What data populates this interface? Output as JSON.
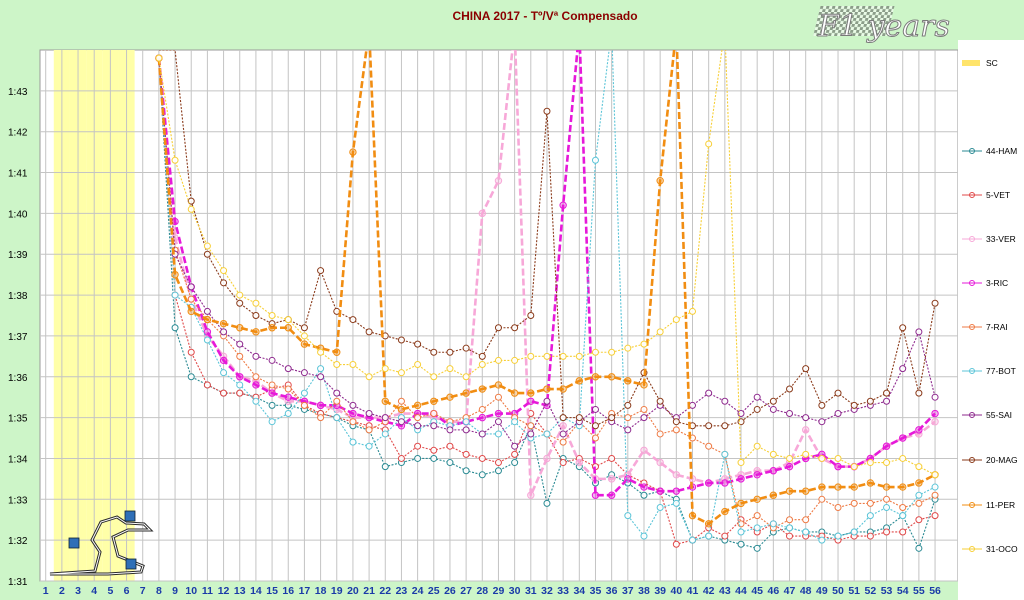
{
  "chart_data": {
    "type": "line",
    "title": "CHINA 2017 - Tº/Vª Compensado",
    "logo_text": "F1 years",
    "x_ticks": [
      1,
      2,
      3,
      4,
      5,
      6,
      7,
      8,
      9,
      10,
      11,
      12,
      13,
      14,
      15,
      16,
      17,
      18,
      19,
      20,
      21,
      22,
      23,
      24,
      25,
      26,
      27,
      28,
      29,
      30,
      31,
      32,
      33,
      34,
      35,
      36,
      37,
      38,
      39,
      40,
      41,
      42,
      43,
      44,
      45,
      46,
      47,
      48,
      49,
      50,
      51,
      52,
      53,
      54,
      55,
      56
    ],
    "y_ticks": [
      "1:31",
      "1:32",
      "1:33",
      "1:34",
      "1:35",
      "1:36",
      "1:37",
      "1:38",
      "1:39",
      "1:40",
      "1:41",
      "1:42",
      "1:43"
    ],
    "y_range_seconds": [
      91,
      104
    ],
    "x_range": [
      1,
      56
    ],
    "safety_car_laps": [
      2,
      3,
      4,
      5,
      6
    ],
    "legend_position": "right",
    "series": [
      {
        "name": "SC",
        "color": "#ffe46b",
        "style": "band"
      },
      {
        "name": "44-HAM",
        "color": "#2a8a93",
        "style": "thin",
        "x": [
          8,
          9,
          10,
          11,
          12,
          13,
          14,
          15,
          16,
          17,
          18,
          19,
          20,
          21,
          22,
          23,
          24,
          25,
          26,
          27,
          28,
          29,
          30,
          31,
          32,
          33,
          34,
          35,
          36,
          37,
          38,
          39,
          40,
          41,
          42,
          43,
          44,
          45,
          46,
          47,
          48,
          49,
          50,
          51,
          52,
          53,
          54,
          55,
          56
        ],
        "y": [
          103.8,
          97.2,
          96.0,
          95.8,
          95.6,
          95.6,
          95.5,
          95.3,
          95.3,
          95.2,
          95.1,
          95.0,
          94.8,
          94.7,
          93.8,
          93.9,
          94.0,
          94.0,
          93.9,
          93.7,
          93.6,
          93.7,
          93.9,
          94.8,
          92.9,
          94.0,
          93.8,
          93.4,
          93.6,
          93.4,
          93.1,
          93.2,
          93.0,
          92.0,
          92.1,
          92.0,
          91.9,
          91.8,
          92.2,
          92.3,
          92.2,
          92.2,
          92.1,
          92.2,
          92.2,
          92.3,
          92.6,
          91.8,
          93.0
        ]
      },
      {
        "name": "5-VET",
        "color": "#e04848",
        "style": "thin",
        "x": [
          8,
          9,
          10,
          11,
          12,
          13,
          14,
          15,
          16,
          17,
          18,
          19,
          20,
          21,
          22,
          23,
          24,
          25,
          26,
          27,
          28,
          29,
          30,
          31,
          32,
          33,
          34,
          35,
          36,
          37,
          38,
          39,
          40,
          41,
          42,
          43,
          44,
          45,
          46,
          47,
          48,
          49,
          50,
          51,
          52,
          53,
          54,
          55,
          56
        ],
        "y": [
          103.8,
          98.0,
          96.6,
          95.8,
          95.6,
          95.6,
          95.5,
          95.7,
          95.8,
          95.3,
          95.1,
          95.0,
          94.9,
          94.8,
          94.7,
          94.0,
          94.3,
          94.2,
          94.3,
          94.1,
          94.0,
          93.9,
          94.1,
          95.1,
          94.6,
          93.9,
          94.0,
          93.8,
          94.0,
          93.6,
          93.4,
          93.2,
          91.9,
          92.0,
          92.3,
          92.1,
          92.5,
          92.2,
          92.4,
          92.1,
          92.1,
          92.1,
          92.0,
          92.1,
          92.1,
          92.2,
          92.2,
          92.5,
          92.6
        ]
      },
      {
        "name": "33-VER",
        "color": "#f7a8d8",
        "style": "thick",
        "x": [
          8,
          9,
          10,
          11,
          12,
          13,
          14,
          15,
          16,
          17,
          18,
          19,
          20,
          21,
          22,
          23,
          24,
          25,
          26,
          27,
          28,
          29,
          30,
          31,
          32,
          33,
          34,
          35,
          36,
          37,
          38,
          39,
          40,
          41,
          42,
          43,
          44,
          45,
          46,
          47,
          48,
          49,
          50,
          51,
          52,
          53,
          54,
          55,
          56
        ],
        "y": [
          103.8,
          99.4,
          97.9,
          97.0,
          96.5,
          96.0,
          95.9,
          95.6,
          95.4,
          95.4,
          95.3,
          95.2,
          95.0,
          95.0,
          95.0,
          95.1,
          95.1,
          95.0,
          94.9,
          94.9,
          100.0,
          100.8,
          104.5,
          93.1,
          94.0,
          94.8,
          93.9,
          93.5,
          93.5,
          93.6,
          94.2,
          93.9,
          93.6,
          93.5,
          93.4,
          93.5,
          93.6,
          93.7,
          93.7,
          93.9,
          94.7,
          94.0,
          93.8,
          93.8,
          94.0,
          94.3,
          94.5,
          94.6,
          94.9
        ]
      },
      {
        "name": "3-RIC",
        "color": "#e619d9",
        "style": "thick",
        "x": [
          8,
          9,
          10,
          11,
          12,
          13,
          14,
          15,
          16,
          17,
          18,
          19,
          20,
          21,
          22,
          23,
          24,
          25,
          26,
          27,
          28,
          29,
          30,
          31,
          32,
          33,
          34,
          35,
          36,
          37,
          38,
          39,
          40,
          41,
          42,
          43,
          44,
          45,
          46,
          47,
          48,
          49,
          50,
          51,
          52,
          53,
          54,
          55,
          56
        ],
        "y": [
          103.8,
          99.8,
          98.2,
          97.1,
          96.4,
          96.0,
          95.8,
          95.6,
          95.5,
          95.4,
          95.3,
          95.3,
          95.1,
          95.0,
          94.9,
          94.8,
          95.1,
          95.1,
          94.8,
          94.9,
          95.0,
          95.1,
          95.1,
          95.4,
          95.3,
          100.2,
          104.5,
          93.1,
          93.1,
          93.5,
          93.3,
          93.2,
          93.2,
          93.3,
          93.4,
          93.4,
          93.5,
          93.6,
          93.7,
          93.8,
          94.0,
          94.1,
          93.8,
          93.8,
          94.0,
          94.3,
          94.5,
          94.7,
          95.1
        ]
      },
      {
        "name": "7-RAI",
        "color": "#ee7a44",
        "style": "thin",
        "x": [
          8,
          9,
          10,
          11,
          12,
          13,
          14,
          15,
          16,
          17,
          18,
          19,
          20,
          21,
          22,
          23,
          24,
          25,
          26,
          27,
          28,
          29,
          30,
          31,
          32,
          33,
          34,
          35,
          36,
          37,
          38,
          39,
          40,
          41,
          42,
          43,
          44,
          45,
          46,
          47,
          48,
          49,
          50,
          51,
          52,
          53,
          54,
          55,
          56
        ],
        "y": [
          103.8,
          99.1,
          97.9,
          97.4,
          97.0,
          96.5,
          96.0,
          95.8,
          95.7,
          95.3,
          95.0,
          95.4,
          94.9,
          94.7,
          94.9,
          95.4,
          95.0,
          95.1,
          94.9,
          95.0,
          95.2,
          95.5,
          95.0,
          94.8,
          94.6,
          94.4,
          94.9,
          94.5,
          95.1,
          95.0,
          95.2,
          94.6,
          94.7,
          94.5,
          94.3,
          94.1,
          92.4,
          92.6,
          92.3,
          92.5,
          92.5,
          93.0,
          92.8,
          92.9,
          92.9,
          93.0,
          92.8,
          92.9,
          93.1
        ]
      },
      {
        "name": "77-BOT",
        "color": "#5cc5d8",
        "style": "thin",
        "x": [
          8,
          9,
          10,
          11,
          12,
          13,
          14,
          15,
          16,
          17,
          18,
          19,
          20,
          21,
          22,
          23,
          24,
          25,
          26,
          27,
          28,
          29,
          30,
          31,
          32,
          33,
          34,
          35,
          36,
          37,
          38,
          39,
          40,
          41,
          42,
          43,
          44,
          45,
          46,
          47,
          48,
          49,
          50,
          51,
          52,
          53,
          54,
          55,
          56
        ],
        "y": [
          103.8,
          98.0,
          97.7,
          96.9,
          96.1,
          95.8,
          95.4,
          94.9,
          95.1,
          95.6,
          96.2,
          95.0,
          94.4,
          94.3,
          94.6,
          95.0,
          94.7,
          94.9,
          94.8,
          94.9,
          94.6,
          94.6,
          94.9,
          94.5,
          94.6,
          95.0,
          94.8,
          101.3,
          104.5,
          92.6,
          92.1,
          92.8,
          92.9,
          92.0,
          92.1,
          94.1,
          92.2,
          92.3,
          92.4,
          92.3,
          92.2,
          92.0,
          92.1,
          92.2,
          92.6,
          92.8,
          92.6,
          93.1,
          93.3
        ]
      },
      {
        "name": "55-SAI",
        "color": "#8e2a8e",
        "style": "thin",
        "x": [
          8,
          9,
          10,
          11,
          12,
          13,
          14,
          15,
          16,
          17,
          18,
          19,
          20,
          21,
          22,
          23,
          24,
          25,
          26,
          27,
          28,
          29,
          30,
          31,
          32,
          33,
          34,
          35,
          36,
          37,
          38,
          39,
          40,
          41,
          42,
          43,
          44,
          45,
          46,
          47,
          48,
          49,
          50,
          51,
          52,
          53,
          54,
          55,
          56
        ],
        "y": [
          103.8,
          99.0,
          98.2,
          97.6,
          97.1,
          96.8,
          96.5,
          96.4,
          96.2,
          96.1,
          96.0,
          95.6,
          95.3,
          95.1,
          95.0,
          94.9,
          94.8,
          94.8,
          94.7,
          94.7,
          94.6,
          94.9,
          94.3,
          94.6,
          95.4,
          94.6,
          94.9,
          95.2,
          94.9,
          94.7,
          95.0,
          95.3,
          95.0,
          95.3,
          95.6,
          95.4,
          95.1,
          95.5,
          95.2,
          95.1,
          95.0,
          94.9,
          95.1,
          95.2,
          95.3,
          95.4,
          96.2,
          97.1,
          95.5
        ]
      },
      {
        "name": "20-MAG",
        "color": "#8a3a1a",
        "style": "thin",
        "x": [
          8,
          9,
          10,
          11,
          12,
          13,
          14,
          15,
          16,
          17,
          18,
          19,
          20,
          21,
          22,
          23,
          24,
          25,
          26,
          27,
          28,
          29,
          30,
          31,
          32,
          33,
          34,
          35,
          36,
          37,
          38,
          39,
          40,
          41,
          42,
          43,
          44,
          45,
          46,
          47,
          48,
          49,
          50,
          51,
          52,
          53,
          54,
          55,
          56
        ],
        "y": [
          104.0,
          104.0,
          100.3,
          99.0,
          98.3,
          97.8,
          97.5,
          97.3,
          97.4,
          97.2,
          98.6,
          97.6,
          97.4,
          97.1,
          97.0,
          96.9,
          96.8,
          96.6,
          96.6,
          96.7,
          96.5,
          97.2,
          97.2,
          97.5,
          102.5,
          95.0,
          95.0,
          94.8,
          95.0,
          95.3,
          96.1,
          95.4,
          94.9,
          94.8,
          94.8,
          94.8,
          94.9,
          95.2,
          95.4,
          95.7,
          96.2,
          95.3,
          95.6,
          95.3,
          95.4,
          95.6,
          97.2,
          95.6,
          97.8
        ]
      },
      {
        "name": "11-PER",
        "color": "#f18d12",
        "style": "thick",
        "x": [
          8,
          9,
          10,
          11,
          12,
          13,
          14,
          15,
          16,
          17,
          18,
          19,
          20,
          21,
          22,
          23,
          24,
          25,
          26,
          27,
          28,
          29,
          30,
          31,
          32,
          33,
          34,
          35,
          36,
          37,
          38,
          39,
          40,
          41,
          42,
          43,
          44,
          45,
          46,
          47,
          48,
          49,
          50,
          51,
          52,
          53,
          54,
          55,
          56
        ],
        "y": [
          103.8,
          98.5,
          97.6,
          97.4,
          97.3,
          97.2,
          97.1,
          97.2,
          97.2,
          96.8,
          96.7,
          96.6,
          101.5,
          104.5,
          95.4,
          95.2,
          95.3,
          95.4,
          95.5,
          95.6,
          95.7,
          95.8,
          95.6,
          95.6,
          95.7,
          95.7,
          95.9,
          96.0,
          96.0,
          95.9,
          95.8,
          100.8,
          104.5,
          92.6,
          92.4,
          92.7,
          92.9,
          93.0,
          93.1,
          93.2,
          93.2,
          93.3,
          93.3,
          93.3,
          93.4,
          93.3,
          93.3,
          93.4,
          93.6
        ]
      },
      {
        "name": "31-OCO",
        "color": "#f7cf36",
        "style": "thin",
        "x": [
          8,
          9,
          10,
          11,
          12,
          13,
          14,
          15,
          16,
          17,
          18,
          19,
          20,
          21,
          22,
          23,
          24,
          25,
          26,
          27,
          28,
          29,
          30,
          31,
          32,
          33,
          34,
          35,
          36,
          37,
          38,
          39,
          40,
          41,
          42,
          43,
          44,
          45,
          46,
          47,
          48,
          49,
          50,
          51,
          52,
          53,
          54,
          55,
          56
        ],
        "y": [
          103.8,
          101.3,
          100.1,
          99.2,
          98.6,
          98.0,
          97.8,
          97.5,
          97.4,
          97.0,
          96.6,
          96.3,
          96.3,
          96.0,
          96.2,
          96.1,
          96.3,
          96.0,
          96.2,
          96.0,
          96.3,
          96.4,
          96.4,
          96.5,
          96.5,
          96.5,
          96.5,
          96.6,
          96.6,
          96.7,
          96.8,
          97.1,
          97.4,
          97.6,
          101.7,
          104.5,
          93.9,
          94.3,
          94.1,
          94.0,
          94.1,
          94.0,
          94.0,
          93.8,
          93.9,
          93.9,
          94.0,
          93.8,
          93.6
        ]
      }
    ]
  }
}
